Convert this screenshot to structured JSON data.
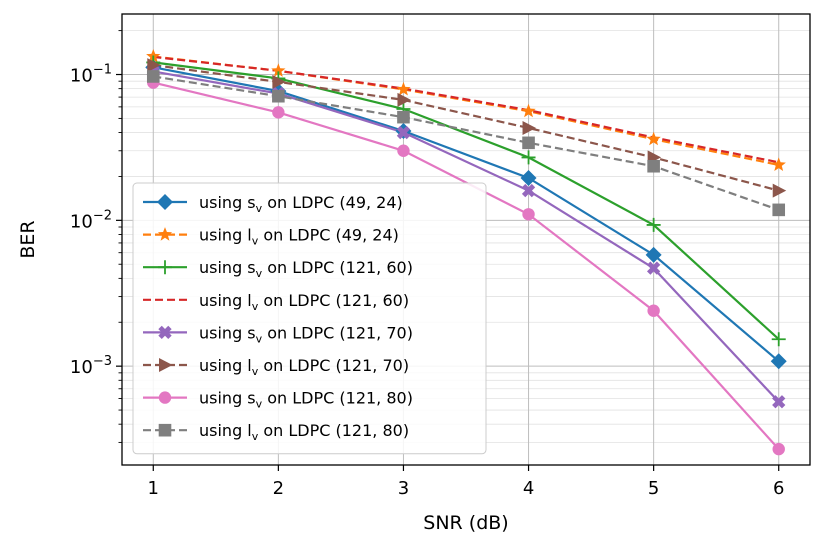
{
  "chart_data": {
    "type": "line",
    "xlabel": "SNR (dB)",
    "ylabel": "BER",
    "yscale": "log",
    "xlim": [
      0.75,
      6.25
    ],
    "ylim": [
      0.00021,
      0.26
    ],
    "xticks": [
      "1",
      "2",
      "3",
      "4",
      "5",
      "6"
    ],
    "yticks": [
      {
        "value": 0.1,
        "base": "10",
        "exp": "−1"
      },
      {
        "value": 0.01,
        "base": "10",
        "exp": "−2"
      },
      {
        "value": 0.001,
        "base": "10",
        "exp": "−3"
      }
    ],
    "grid": true,
    "legend_position": "lower-left",
    "x": [
      1,
      2,
      3,
      4,
      5,
      6
    ],
    "series": [
      {
        "name": "using s_v on LDPC (49, 24)",
        "prefix": "using ",
        "letter": "s",
        "suffix": " on LDPC (49, 24)",
        "color": "#1f77b4",
        "dash": "solid",
        "marker": "diamond",
        "values": [
          0.112,
          0.077,
          0.041,
          0.0195,
          0.0058,
          0.00108
        ]
      },
      {
        "name": "using l_v on LDPC (49, 24)",
        "prefix": "using ",
        "letter": "l",
        "suffix": " on LDPC (49, 24)",
        "color": "#ff7f0e",
        "dash": "dashed",
        "marker": "star",
        "values": [
          0.133,
          0.106,
          0.079,
          0.056,
          0.036,
          0.024
        ]
      },
      {
        "name": "using s_v on LDPC (121, 60)",
        "prefix": "using ",
        "letter": "s",
        "suffix": " on LDPC (121, 60)",
        "color": "#2ca02c",
        "dash": "solid",
        "marker": "plus",
        "values": [
          0.121,
          0.094,
          0.058,
          0.027,
          0.0093,
          0.00153
        ]
      },
      {
        "name": "using l_v on LDPC (121, 60)",
        "prefix": "using ",
        "letter": "l",
        "suffix": " on LDPC (121, 60)",
        "color": "#d62728",
        "dash": "dashed",
        "marker": "none",
        "values": [
          0.132,
          0.106,
          0.08,
          0.057,
          0.037,
          0.025
        ]
      },
      {
        "name": "using s_v on LDPC (121, 70)",
        "prefix": "using ",
        "letter": "s",
        "suffix": " on LDPC (121, 70)",
        "color": "#9467bd",
        "dash": "solid",
        "marker": "x",
        "values": [
          0.105,
          0.074,
          0.04,
          0.016,
          0.0047,
          0.00057
        ]
      },
      {
        "name": "using l_v on LDPC (121, 70)",
        "prefix": "using ",
        "letter": "l",
        "suffix": " on LDPC (121, 70)",
        "color": "#8c564b",
        "dash": "dashed",
        "marker": "triangle-right",
        "values": [
          0.116,
          0.089,
          0.067,
          0.043,
          0.027,
          0.016
        ]
      },
      {
        "name": "using s_v on LDPC (121, 80)",
        "prefix": "using ",
        "letter": "s",
        "suffix": " on LDPC (121, 80)",
        "color": "#e377c2",
        "dash": "solid",
        "marker": "circle",
        "values": [
          0.088,
          0.055,
          0.03,
          0.011,
          0.0024,
          0.00027
        ]
      },
      {
        "name": "using l_v on LDPC (121, 80)",
        "prefix": "using ",
        "letter": "l",
        "suffix": " on LDPC (121, 80)",
        "color": "#7f7f7f",
        "dash": "dashed",
        "marker": "square",
        "values": [
          0.097,
          0.071,
          0.051,
          0.034,
          0.0235,
          0.0118
        ]
      }
    ]
  }
}
